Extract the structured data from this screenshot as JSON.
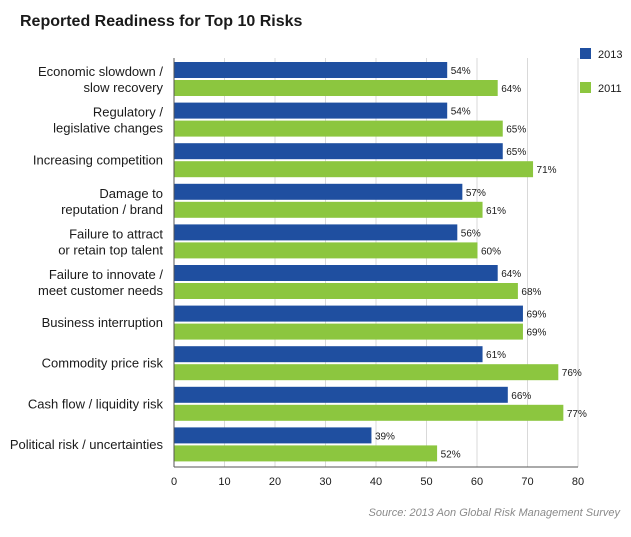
{
  "chart_data": {
    "type": "bar",
    "orientation": "horizontal",
    "title": "Reported Readiness for Top 10 Risks",
    "source": "Source: 2013 Aon Global Risk Management Survey",
    "categories": [
      [
        "Economic slowdown /",
        "slow recovery"
      ],
      [
        "Regulatory /",
        "legislative changes"
      ],
      [
        "Increasing competition"
      ],
      [
        "Damage to",
        "reputation / brand"
      ],
      [
        "Failure to attract",
        "or retain top talent"
      ],
      [
        "Failure to innovate /",
        "meet customer needs"
      ],
      [
        "Business interruption"
      ],
      [
        "Commodity price risk"
      ],
      [
        "Cash flow / liquidity risk"
      ],
      [
        "Political risk / uncertainties"
      ]
    ],
    "series": [
      {
        "name": "2013",
        "color": "#1f4fa0",
        "values": [
          54,
          54,
          65,
          57,
          56,
          64,
          69,
          61,
          66,
          39
        ],
        "labels": [
          "54%",
          "54%",
          "65%",
          "57%",
          "56%",
          "64%",
          "69%",
          "61%",
          "66%",
          "39%"
        ]
      },
      {
        "name": "2011",
        "color": "#8cc63f",
        "values": [
          64,
          65,
          71,
          61,
          60,
          68,
          69,
          76,
          77,
          52
        ],
        "labels": [
          "64%",
          "65%",
          "71%",
          "61%",
          "60%",
          "68%",
          "69%",
          "76%",
          "77%",
          "52%"
        ]
      }
    ],
    "xlim": [
      0,
      80
    ],
    "x_ticks": [
      "0",
      "10",
      "20",
      "30",
      "40",
      "50",
      "60",
      "70",
      "80"
    ],
    "grid": "vertical",
    "legend": "top-right"
  }
}
